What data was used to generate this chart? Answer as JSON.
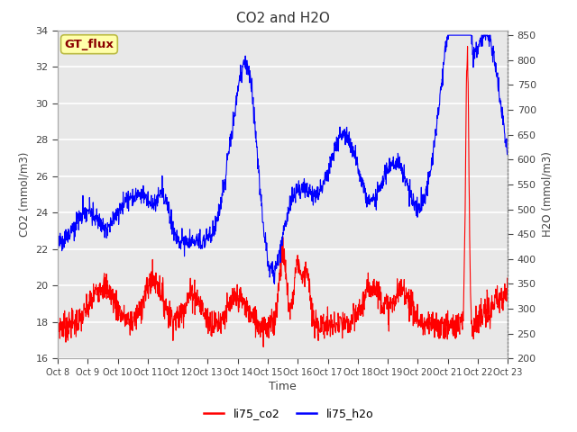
{
  "title": "CO2 and H2O",
  "xlabel": "Time",
  "ylabel_left": "CO2 (mmol/m3)",
  "ylabel_right": "H2O (mmol/m3)",
  "legend_label": "GT_flux",
  "series_labels": [
    "li75_co2",
    "li75_h2o"
  ],
  "series_colors": [
    "red",
    "blue"
  ],
  "co2_ylim": [
    16,
    34
  ],
  "h2o_ylim": [
    200,
    860
  ],
  "co2_yticks": [
    16,
    18,
    20,
    22,
    24,
    26,
    28,
    30,
    32,
    34
  ],
  "h2o_yticks": [
    200,
    250,
    300,
    350,
    400,
    450,
    500,
    550,
    600,
    650,
    700,
    750,
    800,
    850
  ],
  "xtick_labels": [
    "Oct 8",
    "Oct 9",
    "Oct 10",
    "Oct 11",
    "Oct 12",
    "Oct 13",
    "Oct 14",
    "Oct 15",
    "Oct 16",
    "Oct 17",
    "Oct 18",
    "Oct 19",
    "Oct 20",
    "Oct 21",
    "Oct 22",
    "Oct 23"
  ],
  "axes_bg_color": "#e8e8e8",
  "gt_flux_box_color": "#ffffaa",
  "gt_flux_text_color": "#8b0000",
  "gt_flux_edge_color": "#bbbb44"
}
